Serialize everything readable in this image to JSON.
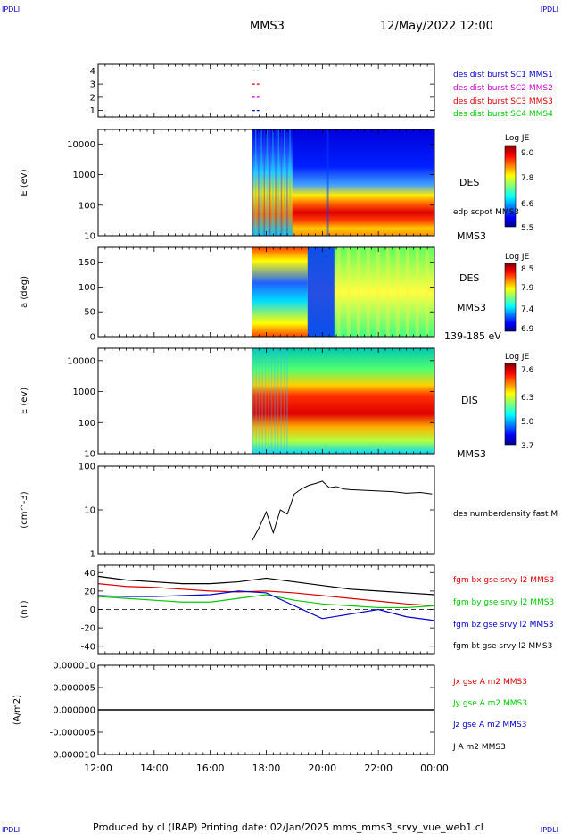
{
  "header": {
    "corner_left_top": "IPDLI",
    "corner_right_top": "IPDLI",
    "corner_left_bottom": "IPDLI",
    "corner_right_bottom": "IPDLI",
    "spacecraft": "MMS3",
    "datetime": "12/May/2022 12:00"
  },
  "footer": {
    "text": "Produced by cl (IRAP)   Printing date: 02/Jan/2025   mms_mms3_srvy_vue_web1.cl"
  },
  "colors": {
    "blue": "#0000cc",
    "magenta": "#cc00cc",
    "red": "#dd0000",
    "green": "#00cc00",
    "black": "#000000"
  },
  "chart_data": [
    {
      "type": "scatter",
      "panel": "burst-availability",
      "yticks": [
        "1",
        "2",
        "3",
        "4"
      ],
      "ylim": [
        0.5,
        4.5
      ],
      "x": [
        "17:30",
        "17:45"
      ],
      "series": [
        {
          "name": "des dist burst SC1 MMS1",
          "color": "#0000cc",
          "y": 1
        },
        {
          "name": "des dist burst SC2 MMS2",
          "color": "#cc00cc",
          "y": 2
        },
        {
          "name": "des dist burst SC3 MMS3",
          "color": "#dd0000",
          "y": 3
        },
        {
          "name": "des dist burst SC4 MMS4",
          "color": "#00cc00",
          "y": 4
        }
      ]
    },
    {
      "type": "heatmap",
      "panel": "des-energy-spectrogram",
      "ylabel": "E (eV)",
      "yscale": "log",
      "ylim": [
        10,
        30000
      ],
      "yticks": [
        "10",
        "100",
        "1000",
        "10000"
      ],
      "label": "DES",
      "side_label": "edp scpot MMS3",
      "spacecraft_label": "MMS3",
      "colorbar": {
        "title": "Log JE",
        "ticks": [
          "9.0",
          "7.8",
          "6.6",
          "5.5"
        ]
      },
      "data_start": "17:30"
    },
    {
      "type": "heatmap",
      "panel": "des-pitch-angle",
      "ylabel": "a (deg)",
      "ylim": [
        0,
        180
      ],
      "yticks": [
        "0",
        "50",
        "100",
        "150"
      ],
      "label": "DES",
      "spacecraft_label": "MMS3",
      "energy_label": "139-185 eV",
      "colorbar": {
        "title": "Log JE",
        "ticks": [
          "8.5",
          "7.9",
          "7.4",
          "6.9"
        ]
      },
      "data_start": "17:30"
    },
    {
      "type": "heatmap",
      "panel": "dis-energy-spectrogram",
      "ylabel": "E (eV)",
      "yscale": "log",
      "ylim": [
        10,
        25000
      ],
      "yticks": [
        "10",
        "100",
        "1000",
        "10000"
      ],
      "label": "DIS",
      "spacecraft_label": "MMS3",
      "colorbar": {
        "title": "Log JE",
        "ticks": [
          "7.6",
          "6.3",
          "5.0",
          "3.7"
        ]
      },
      "data_start": "17:30"
    },
    {
      "type": "line",
      "panel": "density",
      "ylabel": "(cm^-3)",
      "yscale": "log",
      "ylim": [
        1,
        100
      ],
      "yticks": [
        "1",
        "10",
        "100"
      ],
      "series": [
        {
          "name": "des numberdensity fast M",
          "color": "#000000",
          "x": [
            "17:30",
            "17:45",
            "18:00",
            "18:15",
            "18:30",
            "18:45",
            "19:00",
            "19:15",
            "19:30",
            "19:45",
            "20:00",
            "20:15",
            "20:30",
            "20:45",
            "21:00",
            "21:30",
            "22:00",
            "22:30",
            "23:00",
            "23:30",
            "23:55"
          ],
          "values": [
            2,
            4,
            9,
            3,
            10,
            8,
            23,
            30,
            36,
            40,
            45,
            32,
            34,
            30,
            29,
            28,
            27,
            26,
            24,
            25,
            23
          ]
        }
      ]
    },
    {
      "type": "line",
      "panel": "magnetic-field",
      "ylabel": "(nT)",
      "ylim": [
        -48,
        48
      ],
      "yticks": [
        "-40",
        "-20",
        "0",
        "20",
        "40"
      ],
      "x": [
        "12:00",
        "13:00",
        "14:00",
        "15:00",
        "16:00",
        "17:00",
        "18:00",
        "19:00",
        "20:00",
        "21:00",
        "22:00",
        "23:00",
        "00:00"
      ],
      "series": [
        {
          "name": "fgm bx gse srvy l2 MMS3",
          "color": "#dd0000",
          "values": [
            28,
            25,
            24,
            22,
            20,
            19,
            20,
            18,
            15,
            12,
            9,
            6,
            4
          ]
        },
        {
          "name": "fgm by gse srvy l2 MMS3",
          "color": "#00cc00",
          "values": [
            14,
            12,
            10,
            8,
            8,
            12,
            16,
            10,
            6,
            4,
            2,
            2,
            4
          ]
        },
        {
          "name": "fgm bz gse srvy l2 MMS3",
          "color": "#0000cc",
          "values": [
            15,
            14,
            14,
            15,
            16,
            20,
            18,
            4,
            -10,
            -5,
            0,
            -8,
            -12
          ]
        },
        {
          "name": "fgm bt gse srvy l2 MMS3",
          "color": "#000000",
          "values": [
            36,
            32,
            30,
            28,
            28,
            30,
            34,
            30,
            26,
            22,
            20,
            18,
            16
          ]
        }
      ]
    },
    {
      "type": "line",
      "panel": "current-density",
      "ylabel": "(A/m2)",
      "ylim": [
        -1e-05,
        1e-05
      ],
      "yticks": [
        "0.000010",
        "0.000005",
        "0.000000",
        "-0.000005",
        "-0.000010"
      ],
      "series": [
        {
          "name": "Jx gse A m2 MMS3",
          "color": "#dd0000"
        },
        {
          "name": "Jy gse A m2 MMS3",
          "color": "#00cc00"
        },
        {
          "name": "Jz gse A m2 MMS3",
          "color": "#0000cc"
        },
        {
          "name": "J A m2 MMS3",
          "color": "#000000"
        }
      ],
      "values_all_near": 0
    }
  ],
  "x_axis": {
    "ticks": [
      "12:00",
      "14:00",
      "16:00",
      "18:00",
      "20:00",
      "22:00",
      "00:00"
    ]
  }
}
